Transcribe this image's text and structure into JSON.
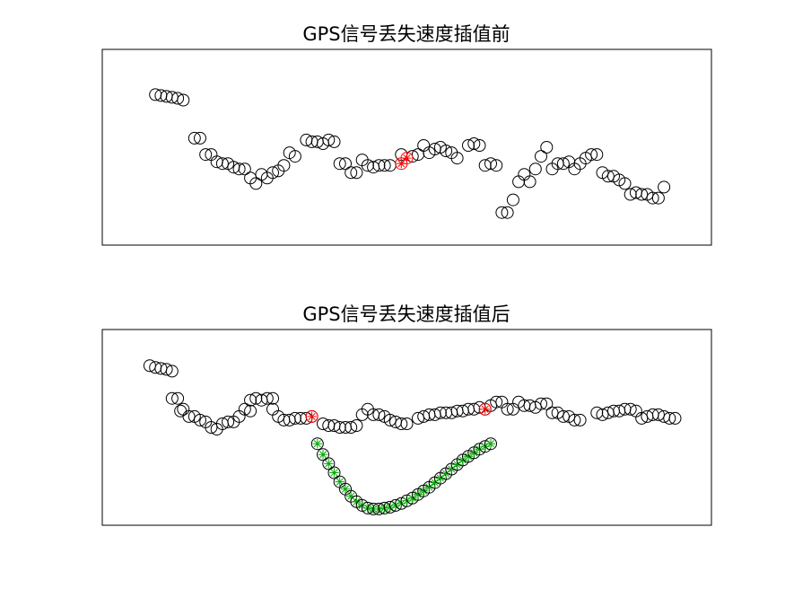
{
  "chart_data": [
    {
      "type": "scatter",
      "title": "GPS信号丢失速度插值前",
      "xlabel": "",
      "ylabel": "",
      "axis_ticks": "none",
      "grid": false,
      "xlim": [
        0,
        100
      ],
      "ylim": [
        0,
        100
      ],
      "series": [
        {
          "marker": "circle",
          "color": "#000000",
          "points": [
            [
              5,
              79
            ],
            [
              6,
              78.5
            ],
            [
              7,
              78
            ],
            [
              8,
              77.5
            ],
            [
              9,
              77
            ],
            [
              10,
              76
            ],
            [
              12,
              55
            ],
            [
              13,
              55
            ],
            [
              14,
              46
            ],
            [
              15,
              46
            ],
            [
              16,
              42
            ],
            [
              17,
              41
            ],
            [
              18,
              41
            ],
            [
              19,
              39
            ],
            [
              20,
              38
            ],
            [
              21,
              38
            ],
            [
              22,
              33
            ],
            [
              23,
              30
            ],
            [
              24,
              35
            ],
            [
              25,
              33
            ],
            [
              26,
              36
            ],
            [
              27,
              37
            ],
            [
              28,
              40
            ],
            [
              29,
              47
            ],
            [
              30,
              45
            ],
            [
              32,
              54
            ],
            [
              33,
              53
            ],
            [
              34,
              53
            ],
            [
              35,
              52
            ],
            [
              36,
              54
            ],
            [
              37,
              53
            ],
            [
              38,
              41
            ],
            [
              39,
              41
            ],
            [
              40,
              36
            ],
            [
              41,
              36
            ],
            [
              42,
              43
            ],
            [
              43,
              40
            ],
            [
              44,
              39
            ],
            [
              45,
              40
            ],
            [
              46,
              40
            ],
            [
              47,
              40
            ],
            [
              49,
              46
            ],
            [
              51,
              45
            ],
            [
              52,
              46
            ],
            [
              53,
              51
            ],
            [
              54,
              47
            ],
            [
              55,
              49
            ],
            [
              56,
              50
            ],
            [
              57,
              48
            ],
            [
              58,
              47
            ],
            [
              59,
              44
            ],
            [
              61,
              51
            ],
            [
              62,
              52
            ],
            [
              63,
              51
            ],
            [
              64,
              40
            ],
            [
              65,
              41
            ],
            [
              66,
              40
            ],
            [
              67,
              14
            ],
            [
              68,
              14
            ],
            [
              69,
              21
            ],
            [
              70,
              31
            ],
            [
              71,
              35
            ],
            [
              72,
              31
            ],
            [
              73,
              38
            ],
            [
              74,
              45
            ],
            [
              75,
              50
            ],
            [
              76,
              38
            ],
            [
              77,
              41
            ],
            [
              78,
              41
            ],
            [
              79,
              42
            ],
            [
              80,
              38
            ],
            [
              81,
              41
            ],
            [
              82,
              44
            ],
            [
              83,
              46
            ],
            [
              84,
              46
            ],
            [
              85,
              36
            ],
            [
              86,
              34
            ],
            [
              87,
              34
            ],
            [
              88,
              32
            ],
            [
              89,
              30
            ],
            [
              90,
              24
            ],
            [
              91,
              25
            ],
            [
              92,
              24
            ],
            [
              93,
              24
            ],
            [
              94,
              22
            ],
            [
              95,
              22
            ],
            [
              96,
              28
            ]
          ]
        },
        {
          "marker": "circle-star",
          "color": "#ff0000",
          "points": [
            [
              49,
              41
            ],
            [
              50,
              44
            ]
          ]
        }
      ]
    },
    {
      "type": "scatter",
      "title": "GPS信号丢失速度插值后",
      "xlabel": "",
      "ylabel": "",
      "axis_ticks": "none",
      "grid": false,
      "xlim": [
        0,
        100
      ],
      "ylim": [
        0,
        100
      ],
      "series": [
        {
          "marker": "circle",
          "color": "#000000",
          "points": [
            [
              4,
              84
            ],
            [
              5,
              83
            ],
            [
              6,
              82.5
            ],
            [
              7,
              82
            ],
            [
              8,
              81
            ],
            [
              8,
              66
            ],
            [
              9,
              66
            ],
            [
              9.5,
              59
            ],
            [
              10,
              60
            ],
            [
              11,
              56
            ],
            [
              12,
              56
            ],
            [
              13,
              54
            ],
            [
              14,
              53
            ],
            [
              15,
              50
            ],
            [
              16,
              49
            ],
            [
              17,
              52
            ],
            [
              18,
              53
            ],
            [
              19,
              53
            ],
            [
              20,
              56
            ],
            [
              21,
              60
            ],
            [
              22,
              59
            ],
            [
              22,
              65
            ],
            [
              23,
              66
            ],
            [
              24,
              65
            ],
            [
              25,
              66
            ],
            [
              26,
              66
            ],
            [
              26,
              60
            ],
            [
              27,
              56
            ],
            [
              28,
              54
            ],
            [
              29,
              54
            ],
            [
              30,
              55
            ],
            [
              31,
              55
            ],
            [
              32,
              55
            ],
            [
              33,
              56
            ],
            [
              35,
              52
            ],
            [
              36,
              51
            ],
            [
              37,
              51
            ],
            [
              38,
              50
            ],
            [
              39,
              50
            ],
            [
              40,
              50
            ],
            [
              41,
              51
            ],
            [
              42,
              57
            ],
            [
              43,
              60
            ],
            [
              44,
              57
            ],
            [
              45,
              57
            ],
            [
              46,
              56
            ],
            [
              47,
              54
            ],
            [
              48,
              53
            ],
            [
              49,
              52
            ],
            [
              50,
              52
            ],
            [
              52,
              55
            ],
            [
              53,
              56
            ],
            [
              54,
              57
            ],
            [
              55,
              57
            ],
            [
              56,
              58
            ],
            [
              57,
              58
            ],
            [
              58,
              58
            ],
            [
              59,
              59
            ],
            [
              60,
              59
            ],
            [
              61,
              60
            ],
            [
              62,
              60
            ],
            [
              63,
              61
            ],
            [
              64,
              60
            ],
            [
              65,
              62
            ],
            [
              66,
              64
            ],
            [
              67,
              64
            ],
            [
              68,
              60
            ],
            [
              69,
              60
            ],
            [
              70,
              64
            ],
            [
              71,
              62
            ],
            [
              72,
              62
            ],
            [
              73,
              61
            ],
            [
              74,
              63
            ],
            [
              75,
              63
            ],
            [
              76,
              58
            ],
            [
              77,
              58
            ],
            [
              78,
              56
            ],
            [
              79,
              56
            ],
            [
              80,
              54
            ],
            [
              81,
              54
            ],
            [
              84,
              58
            ],
            [
              85,
              57
            ],
            [
              86,
              58
            ],
            [
              87,
              59
            ],
            [
              88,
              59
            ],
            [
              89,
              60
            ],
            [
              90,
              60
            ],
            [
              91,
              59
            ],
            [
              92,
              55
            ],
            [
              93,
              56
            ],
            [
              94,
              57
            ],
            [
              95,
              57
            ],
            [
              96,
              56
            ],
            [
              97,
              55
            ],
            [
              98,
              55
            ]
          ]
        },
        {
          "marker": "circle-star",
          "color": "#ff0000",
          "points": [
            [
              33,
              56
            ],
            [
              64,
              60
            ]
          ]
        },
        {
          "name": "",
          "marker": "circle-star",
          "color": "#00cc00",
          "points": [
            [
              34,
              41
            ],
            [
              35,
              35
            ],
            [
              36,
              30
            ],
            [
              37,
              25
            ],
            [
              38,
              20
            ],
            [
              39,
              16
            ],
            [
              40,
              12
            ],
            [
              41,
              9
            ],
            [
              42,
              7
            ],
            [
              43,
              5.5
            ],
            [
              44,
              5
            ],
            [
              45,
              5
            ],
            [
              46,
              5.5
            ],
            [
              47,
              6
            ],
            [
              48,
              7
            ],
            [
              49,
              8
            ],
            [
              50,
              9.5
            ],
            [
              51,
              11
            ],
            [
              52,
              13
            ],
            [
              53,
              15
            ],
            [
              54,
              17
            ],
            [
              55,
              19.5
            ],
            [
              56,
              22
            ],
            [
              57,
              24.5
            ],
            [
              58,
              27
            ],
            [
              59,
              29.5
            ],
            [
              60,
              32
            ],
            [
              61,
              34
            ],
            [
              62,
              36
            ],
            [
              63,
              38
            ],
            [
              64,
              39.5
            ],
            [
              65,
              41
            ]
          ]
        }
      ]
    }
  ],
  "colors": {
    "background": "#ffffff",
    "axes_frame": "#000000",
    "original_marker": "#000000",
    "boundary_marker": "#ff0000",
    "interpolated_marker": "#00cc00"
  }
}
